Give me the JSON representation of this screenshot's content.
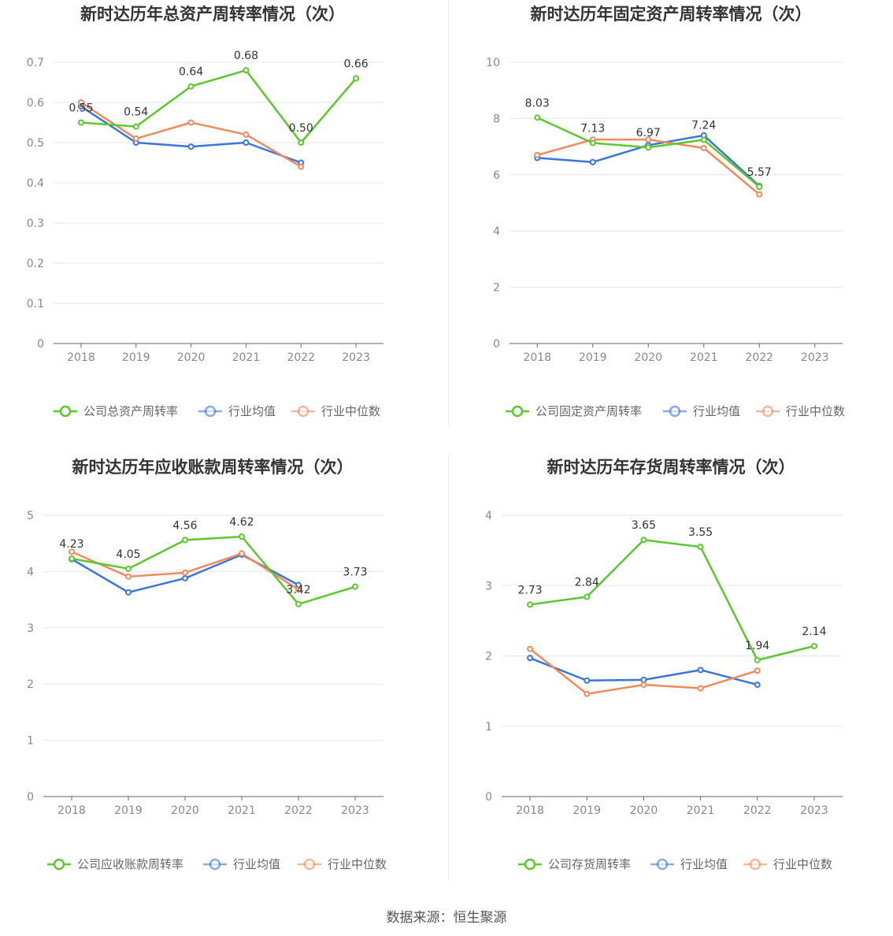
{
  "source": "数据来源：恒生聚源",
  "colors": {
    "company": "#5cc72e",
    "avg": "#3b74db",
    "median": "#f08a5d",
    "grid": "#e6e6ee",
    "axis": "#666666"
  },
  "chart_data": [
    {
      "type": "line",
      "title": "新时达历年总资产周转率情况（次）",
      "categories": [
        "2018",
        "2019",
        "2020",
        "2021",
        "2022",
        "2023"
      ],
      "ylim": [
        0,
        0.7
      ],
      "yticks": [
        "0",
        "0.1",
        "0.2",
        "0.3",
        "0.4",
        "0.5",
        "0.6",
        "0.7"
      ],
      "series": [
        {
          "name": "公司总资产周转率",
          "values": [
            0.55,
            0.54,
            0.64,
            0.68,
            0.5,
            0.66
          ],
          "labels": [
            "0.55",
            "0.54",
            "0.64",
            "0.68",
            "0.50",
            "0.66"
          ]
        },
        {
          "name": "行业均值",
          "values": [
            0.59,
            0.5,
            0.49,
            0.5,
            0.45,
            null
          ]
        },
        {
          "name": "行业中位数",
          "values": [
            0.6,
            0.51,
            0.55,
            0.52,
            0.44,
            null
          ]
        }
      ],
      "legend": "bottom"
    },
    {
      "type": "line",
      "title": "新时达历年固定资产周转率情况（次）",
      "categories": [
        "2018",
        "2019",
        "2020",
        "2021",
        "2022",
        "2023"
      ],
      "ylim": [
        0,
        10
      ],
      "yticks": [
        "0",
        "2",
        "4",
        "6",
        "8",
        "10"
      ],
      "series": [
        {
          "name": "公司固定资产周转率",
          "values": [
            8.03,
            7.13,
            6.97,
            7.24,
            5.57,
            null
          ],
          "labels": [
            "8.03",
            "7.13",
            "6.97",
            "7.24",
            "5.57",
            ""
          ]
        },
        {
          "name": "行业均值",
          "values": [
            6.6,
            6.45,
            7.05,
            7.4,
            5.6,
            null
          ]
        },
        {
          "name": "行业中位数",
          "values": [
            6.7,
            7.25,
            7.25,
            6.95,
            5.3,
            null
          ]
        }
      ],
      "legend": "bottom"
    },
    {
      "type": "line",
      "title": "新时达历年应收账款周转率情况（次）",
      "categories": [
        "2018",
        "2019",
        "2020",
        "2021",
        "2022",
        "2023"
      ],
      "ylim": [
        0,
        5
      ],
      "yticks": [
        "0",
        "1",
        "2",
        "3",
        "4",
        "5"
      ],
      "series": [
        {
          "name": "公司应收账款周转率",
          "values": [
            4.23,
            4.05,
            4.56,
            4.62,
            3.42,
            3.73
          ],
          "labels": [
            "4.23",
            "4.05",
            "4.56",
            "4.62",
            "3.42",
            "3.73"
          ]
        },
        {
          "name": "行业均值",
          "values": [
            4.22,
            3.63,
            3.88,
            4.3,
            3.76,
            null
          ]
        },
        {
          "name": "行业中位数",
          "values": [
            4.35,
            3.91,
            3.98,
            4.32,
            3.68,
            null
          ]
        }
      ],
      "legend": "bottom"
    },
    {
      "type": "line",
      "title": "新时达历年存货周转率情况（次）",
      "categories": [
        "2018",
        "2019",
        "2020",
        "2021",
        "2022",
        "2023"
      ],
      "ylim": [
        0,
        4
      ],
      "yticks": [
        "0",
        "1",
        "2",
        "3",
        "4"
      ],
      "series": [
        {
          "name": "公司存货周转率",
          "values": [
            2.73,
            2.84,
            3.65,
            3.55,
            1.94,
            2.14
          ],
          "labels": [
            "2.73",
            "2.84",
            "3.65",
            "3.55",
            "1.94",
            "2.14"
          ]
        },
        {
          "name": "行业均值",
          "values": [
            1.97,
            1.65,
            1.66,
            1.8,
            1.59,
            null
          ]
        },
        {
          "name": "行业中位数",
          "values": [
            2.1,
            1.46,
            1.59,
            1.54,
            1.79,
            null
          ]
        }
      ],
      "legend": "bottom"
    }
  ]
}
